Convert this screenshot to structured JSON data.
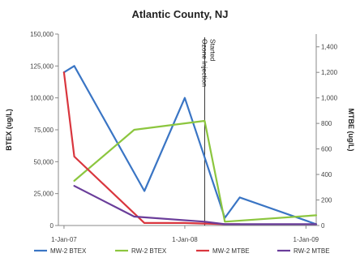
{
  "chart_data": {
    "type": "line",
    "title": "Atlantic County, NJ",
    "ylabel": "BTEX (ug/L)",
    "y2label": "MTBE (ug/L)",
    "ylim": [
      0,
      150000
    ],
    "y2lim": [
      0,
      1500
    ],
    "yticks": [
      0,
      25000,
      50000,
      75000,
      100000,
      125000,
      150000
    ],
    "yticklabels": [
      "0",
      "25,000",
      "50,000",
      "75,000",
      "100,000",
      "125,000",
      "150,000"
    ],
    "y2ticks": [
      0,
      200,
      400,
      600,
      800,
      1000,
      1200,
      1400
    ],
    "y2ticklabels": [
      "0",
      "200",
      "400",
      "600",
      "800",
      "1,000",
      "1,200",
      "1,400"
    ],
    "xlim": [
      "2006-12-15",
      "2009-02-01"
    ],
    "xticks": [
      "2007-01-01",
      "2008-01-01",
      "2009-01-01"
    ],
    "xticklabels": [
      "1-Jan-07",
      "1-Jan-08",
      "1-Jan-09"
    ],
    "grid": false,
    "legend": "bottom",
    "annotation": {
      "date": "2008-03-01",
      "lines": [
        "Ozone Injection",
        "Started"
      ]
    },
    "series": [
      {
        "name": "MW-2 BTEX",
        "axis": "left",
        "color": "#3a75c4",
        "points": [
          [
            "2007-01-01",
            120000
          ],
          [
            "2007-02-01",
            125000
          ],
          [
            "2007-09-01",
            27000
          ],
          [
            "2008-01-01",
            100000
          ],
          [
            "2008-05-01",
            6000
          ],
          [
            "2008-06-15",
            22000
          ],
          [
            "2009-02-01",
            1000
          ]
        ]
      },
      {
        "name": "RW-2 BTEX",
        "axis": "left",
        "color": "#8cc63f",
        "points": [
          [
            "2007-02-01",
            35000
          ],
          [
            "2007-08-01",
            75000
          ],
          [
            "2008-03-01",
            82000
          ],
          [
            "2008-05-01",
            3000
          ],
          [
            "2009-02-01",
            8000
          ]
        ]
      },
      {
        "name": "MW-2 MTBE",
        "axis": "right",
        "color": "#d9363e",
        "points": [
          [
            "2007-01-01",
            1200
          ],
          [
            "2007-02-01",
            540
          ],
          [
            "2007-09-01",
            20
          ],
          [
            "2008-01-01",
            20
          ],
          [
            "2008-05-01",
            10
          ],
          [
            "2008-06-15",
            10
          ]
        ]
      },
      {
        "name": "RW-2 MTBE",
        "axis": "right",
        "color": "#6a3d9a",
        "points": [
          [
            "2007-02-01",
            310
          ],
          [
            "2007-08-01",
            70
          ],
          [
            "2008-03-01",
            30
          ],
          [
            "2008-05-01",
            10
          ],
          [
            "2009-02-01",
            10
          ]
        ]
      }
    ]
  }
}
